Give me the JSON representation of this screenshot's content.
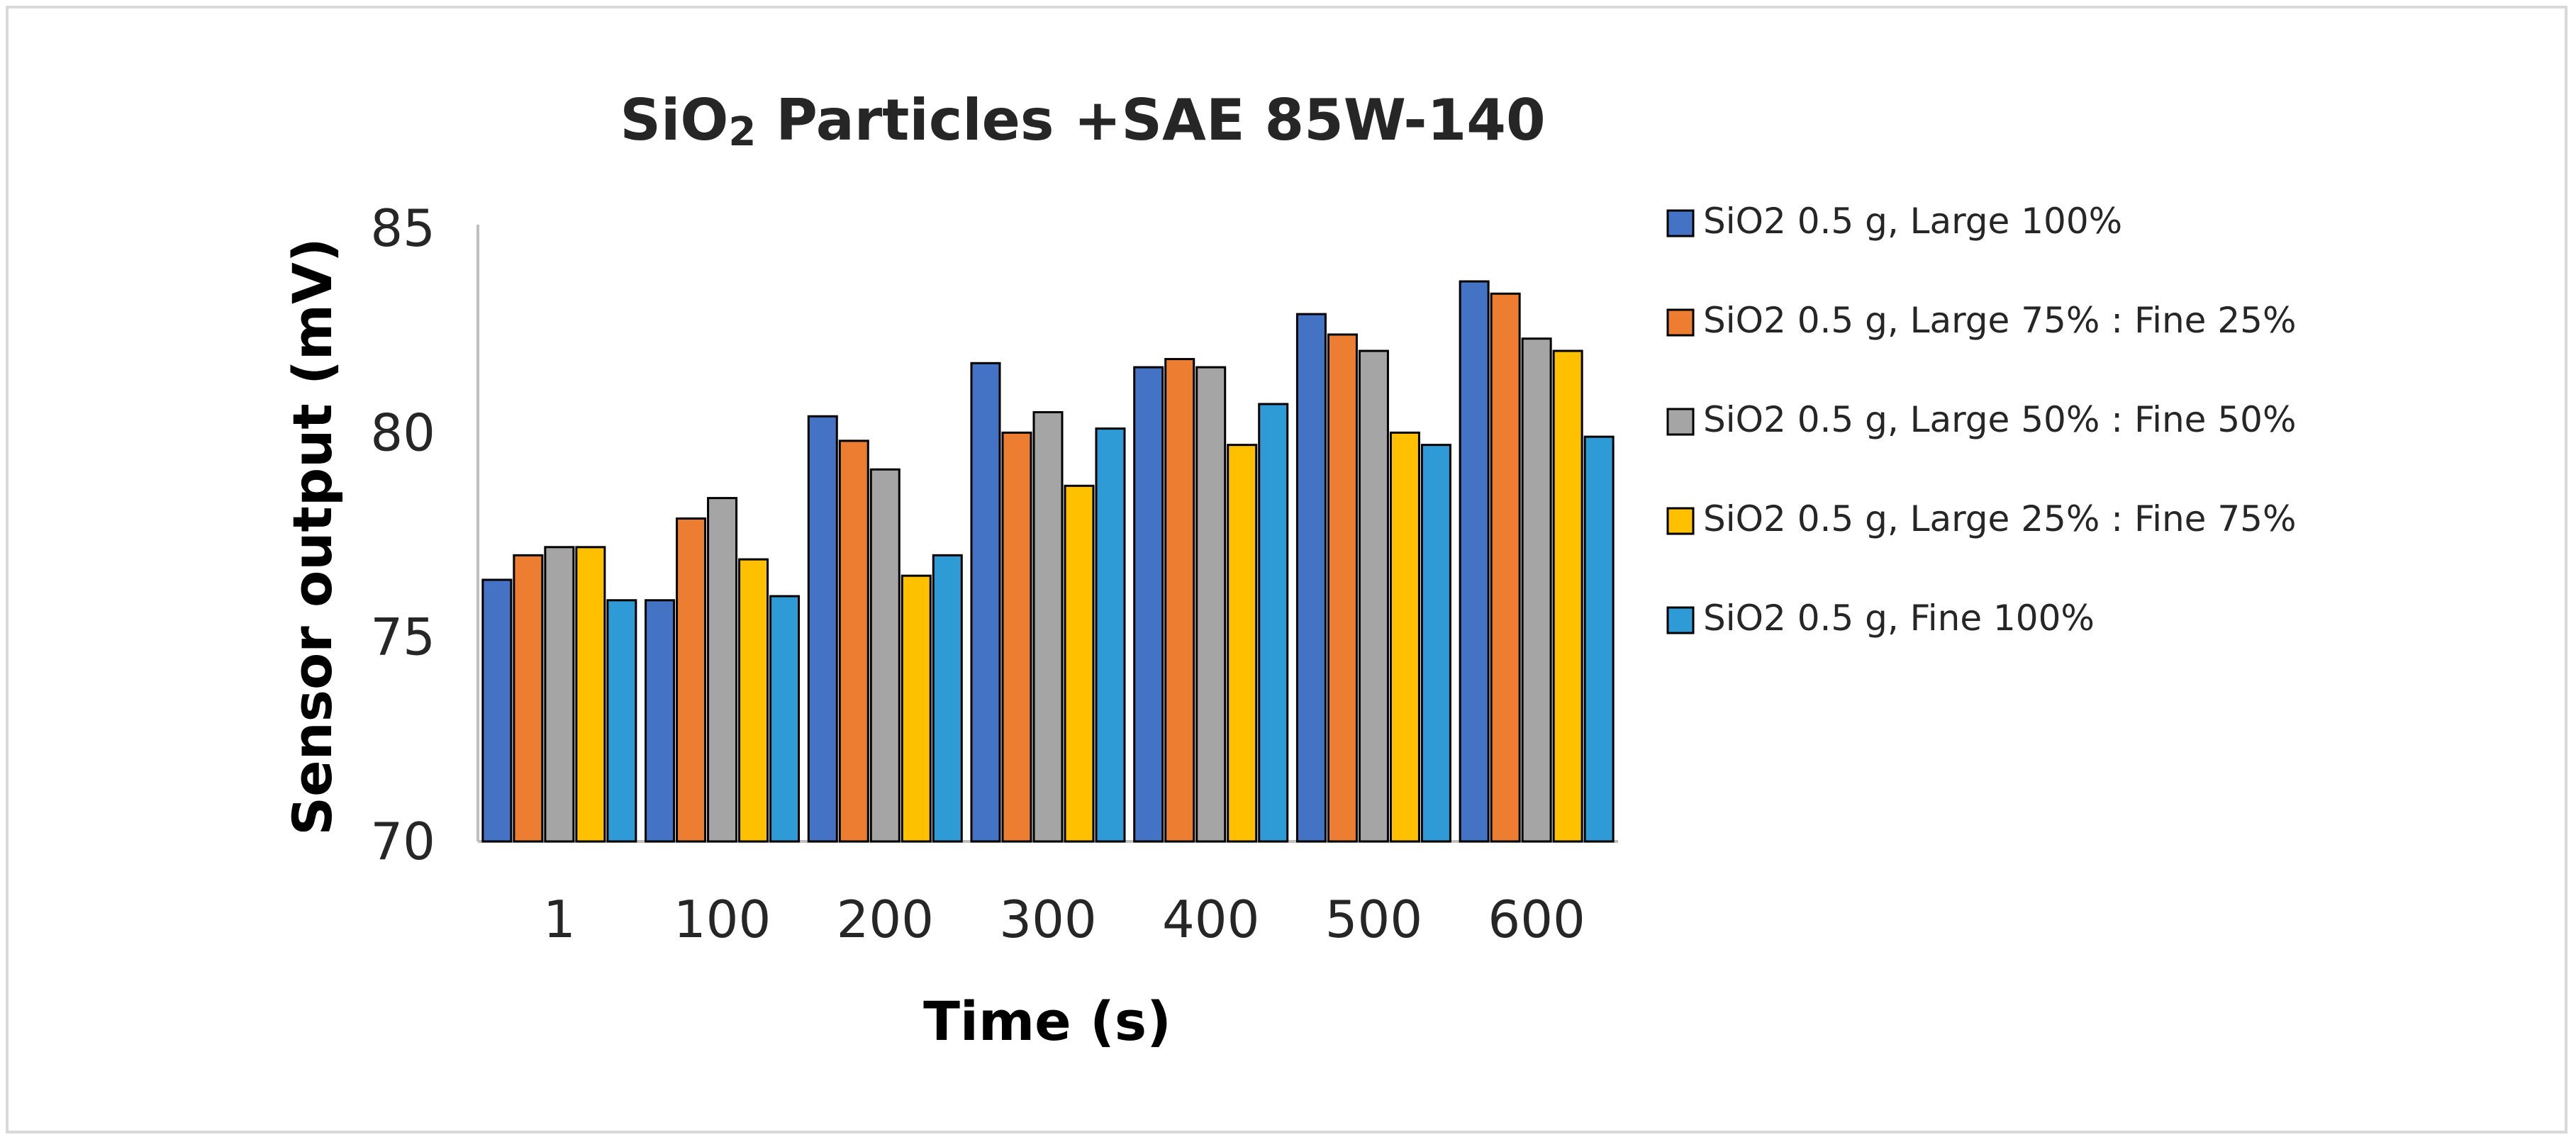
{
  "chart_data": {
    "type": "bar",
    "title": {
      "main": "SiO",
      "subscript": "2",
      "rest": " Particles +SAE 85W-140"
    },
    "xlabel": "Time (s)",
    "ylabel": "Sensor output (mV)",
    "ylim": [
      70,
      85
    ],
    "yticks": [
      70,
      75,
      80,
      85
    ],
    "categories": [
      "1",
      "100",
      "200",
      "300",
      "400",
      "500",
      "600"
    ],
    "legend_position": "right",
    "series": [
      {
        "name": "SiO2 0.5 g, Large 100%",
        "color": "#4472c4",
        "values": [
          76.4,
          75.9,
          80.4,
          81.7,
          81.6,
          82.9,
          83.7
        ]
      },
      {
        "name": "SiO2 0.5 g, Large 75% : Fine 25%",
        "color": "#ed7d31",
        "values": [
          77.0,
          77.9,
          79.8,
          80.0,
          81.8,
          82.4,
          83.4
        ]
      },
      {
        "name": "SiO2 0.5 g, Large 50% : Fine 50%",
        "color": "#a5a5a5",
        "values": [
          77.2,
          78.4,
          79.1,
          80.5,
          81.6,
          82.0,
          82.3
        ]
      },
      {
        "name": "SiO2 0.5 g, Large 25% : Fine 75%",
        "color": "#ffc000",
        "values": [
          77.2,
          76.9,
          76.5,
          78.7,
          79.7,
          80.0,
          82.0
        ]
      },
      {
        "name": "SiO2 0.5 g, Fine 100%",
        "color": "#2e9bd6",
        "values": [
          75.9,
          76.0,
          77.0,
          80.1,
          80.7,
          79.7,
          79.9
        ]
      }
    ]
  }
}
